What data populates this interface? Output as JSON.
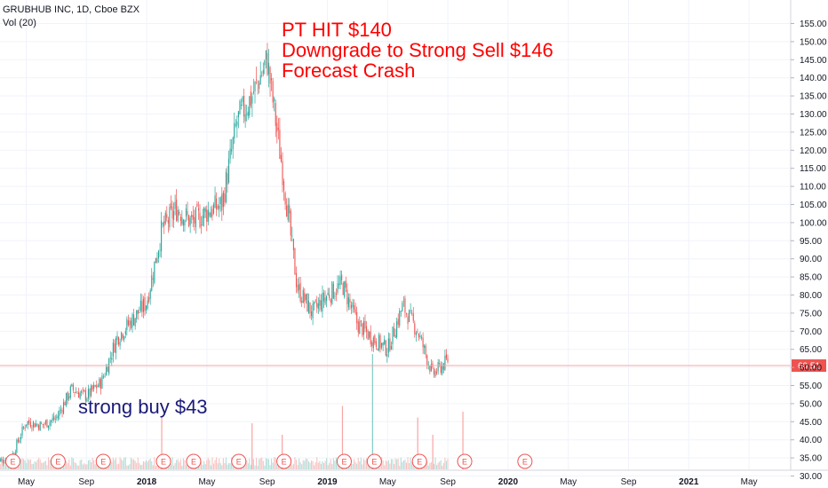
{
  "header": {
    "symbol_line": "GRUBHUB INC, 1D, Cboe BZX",
    "volume_line": "Vol (20)"
  },
  "annotations": {
    "top_line1": "PT HIT $140",
    "top_line2": "Downgrade to Strong Sell $146",
    "top_line3": "Forecast Crash",
    "bottom": "strong buy $43"
  },
  "colors": {
    "up": "#26a69a",
    "down": "#ef5350",
    "annotation_red": "#ff0000",
    "annotation_blue": "#1a1a7a",
    "price_line": "#f7a5a5",
    "price_badge": "#ef5350",
    "earnings_marker": "#ef5350"
  },
  "price_badge": "60.51",
  "earnings_label": "E",
  "chart_data": {
    "type": "candlestick",
    "title": "GRUBHUB INC, 1D, Cboe BZX",
    "ylim": [
      27,
      156
    ],
    "y_ticks": [
      "30.00",
      "35.00",
      "40.00",
      "45.00",
      "50.00",
      "55.00",
      "60.00",
      "65.00",
      "70.00",
      "75.00",
      "80.00",
      "85.00",
      "90.00",
      "95.00",
      "100.00",
      "105.00",
      "110.00",
      "115.00",
      "120.00",
      "125.00",
      "130.00",
      "135.00",
      "140.00",
      "145.00",
      "150.00",
      "155.00"
    ],
    "x_ticks": [
      "May",
      "Sep",
      "2018",
      "May",
      "Sep",
      "2019",
      "May",
      "Sep",
      "2020",
      "May",
      "Sep",
      "2021",
      "May"
    ],
    "x_range": [
      "2017-03",
      "2021-08"
    ],
    "last_price": 60.51,
    "price_path": [
      {
        "date": "2017-03",
        "close": 34
      },
      {
        "date": "2017-04",
        "close": 35
      },
      {
        "date": "2017-05",
        "close": 45
      },
      {
        "date": "2017-06",
        "close": 44
      },
      {
        "date": "2017-07",
        "close": 46
      },
      {
        "date": "2017-08",
        "close": 54
      },
      {
        "date": "2017-09",
        "close": 52
      },
      {
        "date": "2017-10",
        "close": 56
      },
      {
        "date": "2017-11",
        "close": 68
      },
      {
        "date": "2017-12",
        "close": 73
      },
      {
        "date": "2018-01",
        "close": 78
      },
      {
        "date": "2018-02",
        "close": 98
      },
      {
        "date": "2018-03",
        "close": 104
      },
      {
        "date": "2018-04",
        "close": 100
      },
      {
        "date": "2018-05",
        "close": 103
      },
      {
        "date": "2018-06",
        "close": 105
      },
      {
        "date": "2018-07",
        "close": 128
      },
      {
        "date": "2018-08",
        "close": 135
      },
      {
        "date": "2018-09",
        "close": 145
      },
      {
        "date": "2018-10",
        "close": 115
      },
      {
        "date": "2018-11",
        "close": 82
      },
      {
        "date": "2018-12",
        "close": 75
      },
      {
        "date": "2019-01",
        "close": 80
      },
      {
        "date": "2019-02",
        "close": 83
      },
      {
        "date": "2019-03",
        "close": 72
      },
      {
        "date": "2019-04",
        "close": 68
      },
      {
        "date": "2019-05",
        "close": 65
      },
      {
        "date": "2019-06",
        "close": 77
      },
      {
        "date": "2019-07",
        "close": 70
      },
      {
        "date": "2019-08",
        "close": 58
      },
      {
        "date": "2019-09",
        "close": 62
      }
    ],
    "volume_spikes": [
      {
        "date": "2018-02",
        "value": 0.45
      },
      {
        "date": "2018-08",
        "value": 0.4
      },
      {
        "date": "2018-10",
        "value": 0.3
      },
      {
        "date": "2019-02",
        "value": 0.55
      },
      {
        "date": "2019-04",
        "value": 1.0
      },
      {
        "date": "2019-07",
        "value": 0.45
      },
      {
        "date": "2019-08",
        "value": 0.3
      },
      {
        "date": "2019-10",
        "value": 0.5
      }
    ],
    "earnings_dates": [
      "2017-04",
      "2017-07",
      "2017-10",
      "2018-02",
      "2018-04",
      "2018-07",
      "2018-10",
      "2019-02",
      "2019-04",
      "2019-07",
      "2019-10",
      "2020-02"
    ]
  }
}
